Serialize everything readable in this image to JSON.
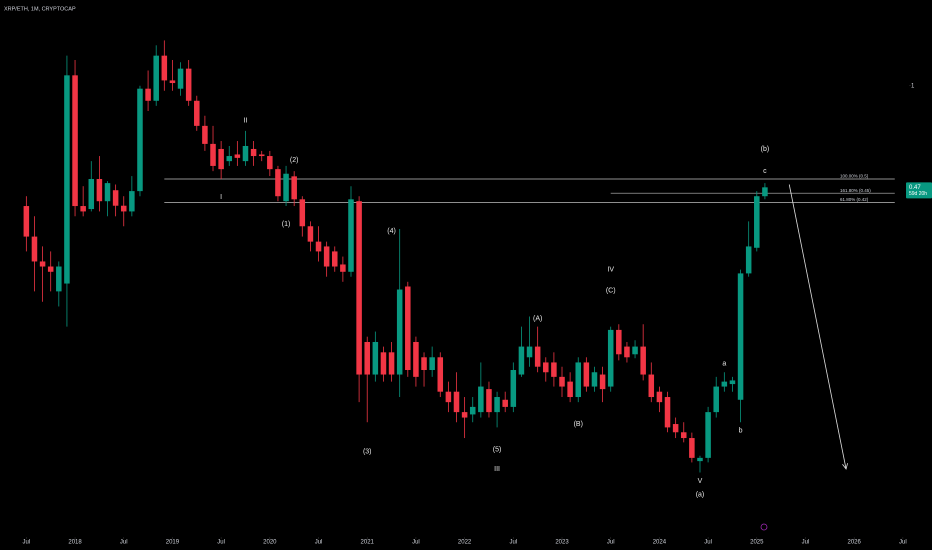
{
  "chart_data": {
    "type": "candlestick",
    "title": "XRP/ETH, 1M, CRYPTOCAP",
    "x": [
      "2017-07",
      "2017-08",
      "2017-09",
      "2017-10",
      "2017-11",
      "2017-12",
      "2018-01",
      "2018-02",
      "2018-03",
      "2018-04",
      "2018-05",
      "2018-06",
      "2018-07",
      "2018-08",
      "2018-09",
      "2018-10",
      "2018-11",
      "2018-12",
      "2019-01",
      "2019-02",
      "2019-03",
      "2019-04",
      "2019-05",
      "2019-06",
      "2019-07",
      "2019-08",
      "2019-09",
      "2019-10",
      "2019-11",
      "2019-12",
      "2020-01",
      "2020-02",
      "2020-03",
      "2020-04",
      "2020-05",
      "2020-06",
      "2020-07",
      "2020-08",
      "2020-09",
      "2020-10",
      "2020-11",
      "2020-12",
      "2021-01",
      "2021-02",
      "2021-03",
      "2021-04",
      "2021-05",
      "2021-06",
      "2021-07",
      "2021-08",
      "2021-09",
      "2021-10",
      "2021-11",
      "2021-12",
      "2022-01",
      "2022-02",
      "2022-03",
      "2022-04",
      "2022-05",
      "2022-06",
      "2022-07",
      "2022-08",
      "2022-09",
      "2022-10",
      "2022-11",
      "2022-12",
      "2023-01",
      "2023-02",
      "2023-03",
      "2023-04",
      "2023-05",
      "2023-06",
      "2023-07",
      "2023-08",
      "2023-09",
      "2023-10",
      "2023-11",
      "2023-12",
      "2024-01",
      "2024-02",
      "2024-03",
      "2024-04",
      "2024-05",
      "2024-06",
      "2024-07",
      "2024-08",
      "2024-09",
      "2024-10",
      "2024-11",
      "2024-12",
      "2025-01",
      "2025-02"
    ],
    "open": [
      0.409,
      0.326,
      0.271,
      0.261,
      0.217,
      0.23,
      1.08,
      0.409,
      0.4,
      0.5,
      0.424,
      0.46,
      0.41,
      0.393,
      0.457,
      0.978,
      0.894,
      1.25,
      1.04,
      0.978,
      1.135,
      0.894,
      0.742,
      0.649,
      0.625,
      0.571,
      0.6,
      0.571,
      0.625,
      0.6,
      0.593,
      0.538,
      0.424,
      0.51,
      0.43,
      0.352,
      0.314,
      0.303,
      0.292,
      0.265,
      0.251,
      0.424,
      0.149,
      0.117,
      0.138,
      0.138,
      0.117,
      0.225,
      0.149,
      0.133,
      0.121,
      0.133,
      0.103,
      0.103,
      0.0885,
      0.087,
      0.0885,
      0.105,
      0.0885,
      0.097,
      0.092,
      0.117,
      0.133,
      0.144,
      0.128,
      0.128,
      0.115,
      0.111,
      0.099,
      0.128,
      0.107,
      0.117,
      0.107,
      0.163,
      0.144,
      0.136,
      0.144,
      0.117,
      0.103,
      0.099,
      0.081,
      0.0762,
      0.073,
      0.0615,
      0.063,
      0.0885,
      0.107,
      0.109,
      0.097,
      0.248,
      0.3,
      0.44
    ],
    "high": [
      0.44,
      0.379,
      0.303,
      0.292,
      0.271,
      1.25,
      1.21,
      0.474,
      0.571,
      0.593,
      0.492,
      0.48,
      0.44,
      0.511,
      1.0,
      1.12,
      1.35,
      1.4,
      1.21,
      1.19,
      1.21,
      0.928,
      0.8,
      0.742,
      0.663,
      0.639,
      0.663,
      0.715,
      0.663,
      0.616,
      0.616,
      0.551,
      0.551,
      0.53,
      0.44,
      0.365,
      0.352,
      0.314,
      0.303,
      0.281,
      0.474,
      0.44,
      0.155,
      0.161,
      0.144,
      0.149,
      0.345,
      0.233,
      0.155,
      0.138,
      0.144,
      0.138,
      0.111,
      0.119,
      0.099,
      0.099,
      0.128,
      0.111,
      0.103,
      0.103,
      0.128,
      0.167,
      0.18,
      0.167,
      0.133,
      0.138,
      0.124,
      0.119,
      0.133,
      0.133,
      0.124,
      0.124,
      0.167,
      0.17,
      0.149,
      0.151,
      0.17,
      0.128,
      0.107,
      0.103,
      0.085,
      0.0821,
      0.076,
      0.064,
      0.092,
      0.115,
      0.119,
      0.115,
      0.255,
      0.365,
      0.457,
      0.485
    ],
    "low": [
      0.292,
      0.217,
      0.201,
      0.217,
      0.194,
      0.167,
      0.379,
      0.379,
      0.393,
      0.393,
      0.379,
      0.379,
      0.352,
      0.379,
      0.44,
      0.829,
      0.861,
      0.963,
      0.963,
      0.928,
      0.861,
      0.715,
      0.616,
      0.53,
      0.5,
      0.551,
      0.551,
      0.551,
      0.551,
      0.571,
      0.511,
      0.424,
      0.409,
      0.409,
      0.326,
      0.292,
      0.271,
      0.242,
      0.251,
      0.233,
      0.242,
      0.0953,
      0.0821,
      0.111,
      0.111,
      0.111,
      0.099,
      0.115,
      0.107,
      0.107,
      0.115,
      0.099,
      0.0885,
      0.0821,
      0.073,
      0.0821,
      0.085,
      0.085,
      0.079,
      0.0885,
      0.0885,
      0.115,
      0.124,
      0.119,
      0.111,
      0.107,
      0.099,
      0.0953,
      0.0953,
      0.103,
      0.103,
      0.0953,
      0.103,
      0.13,
      0.128,
      0.132,
      0.112,
      0.0953,
      0.0885,
      0.0762,
      0.073,
      0.0707,
      0.0609,
      0.0565,
      0.0609,
      0.085,
      0.103,
      0.103,
      0.0821,
      0.242,
      0.292,
      0.43
    ],
    "close": [
      0.326,
      0.271,
      0.261,
      0.251,
      0.261,
      1.08,
      0.409,
      0.393,
      0.5,
      0.424,
      0.485,
      0.41,
      0.393,
      0.457,
      0.978,
      0.894,
      1.25,
      1.04,
      1.02,
      1.135,
      0.894,
      0.742,
      0.649,
      0.551,
      0.538,
      0.593,
      0.585,
      0.639,
      0.593,
      0.593,
      0.538,
      0.44,
      0.52,
      0.43,
      0.352,
      0.314,
      0.292,
      0.261,
      0.261,
      0.251,
      0.43,
      0.117,
      0.117,
      0.149,
      0.117,
      0.117,
      0.22,
      0.121,
      0.115,
      0.121,
      0.133,
      0.103,
      0.0953,
      0.0885,
      0.085,
      0.092,
      0.107,
      0.0885,
      0.099,
      0.092,
      0.121,
      0.144,
      0.144,
      0.124,
      0.119,
      0.115,
      0.107,
      0.099,
      0.128,
      0.107,
      0.119,
      0.105,
      0.163,
      0.136,
      0.133,
      0.144,
      0.117,
      0.099,
      0.0953,
      0.079,
      0.0762,
      0.073,
      0.063,
      0.063,
      0.0885,
      0.107,
      0.111,
      0.112,
      0.248,
      0.303,
      0.44,
      0.47
    ],
    "up_color": "#089981",
    "down_color": "#f23645",
    "log_scale": true,
    "xlim": [
      "2017-04",
      "2026-08"
    ],
    "ylim": [
      0.035,
      1.89
    ],
    "yticks": [
      1
    ],
    "xticks": [
      {
        "value": "2017-07",
        "label": "Jul"
      },
      {
        "value": "2018-01",
        "label": "2018"
      },
      {
        "value": "2018-07",
        "label": "Jul"
      },
      {
        "value": "2019-01",
        "label": "2019"
      },
      {
        "value": "2019-07",
        "label": "Jul"
      },
      {
        "value": "2020-01",
        "label": "2020"
      },
      {
        "value": "2020-07",
        "label": "Jul"
      },
      {
        "value": "2021-01",
        "label": "2021"
      },
      {
        "value": "2021-07",
        "label": "Jul"
      },
      {
        "value": "2022-01",
        "label": "2022"
      },
      {
        "value": "2022-07",
        "label": "Jul"
      },
      {
        "value": "2023-01",
        "label": "2023"
      },
      {
        "value": "2023-07",
        "label": "Jul"
      },
      {
        "value": "2024-01",
        "label": "2024"
      },
      {
        "value": "2024-07",
        "label": "Jul"
      },
      {
        "value": "2025-01",
        "label": "2025"
      },
      {
        "value": "2025-07",
        "label": "Jul"
      },
      {
        "value": "2026-01",
        "label": "2026"
      },
      {
        "value": "2026-07",
        "label": "Jul"
      }
    ],
    "levels": [
      {
        "label": "100.00% (0.5)",
        "value": 0.5,
        "from": "2018-12",
        "to": "2026-06"
      },
      {
        "label": "161.80% (0.45)",
        "value": 0.45,
        "from": "2023-07",
        "to": "2026-06"
      },
      {
        "label": "61.80% (0.42)",
        "value": 0.42,
        "from": "2018-12",
        "to": "2026-06"
      }
    ],
    "annotations": [
      {
        "text": "I",
        "x": "2019-07",
        "y": 0.437
      },
      {
        "text": "II",
        "x": "2019-10",
        "y": 0.77
      },
      {
        "text": "(2)",
        "x": "2020-04",
        "y": 0.575
      },
      {
        "text": "(1)",
        "x": "2020-03",
        "y": 0.357
      },
      {
        "text": "(3)",
        "x": "2021-01",
        "y": 0.066
      },
      {
        "text": "(4)",
        "x": "2021-04",
        "y": 0.339
      },
      {
        "text": "(5)",
        "x": "2022-05",
        "y": 0.067
      },
      {
        "text": "III",
        "x": "2022-05",
        "y": 0.058
      },
      {
        "text": "(A)",
        "x": "2022-10",
        "y": 0.177
      },
      {
        "text": "(B)",
        "x": "2023-03",
        "y": 0.081
      },
      {
        "text": "IV",
        "x": "2023-07",
        "y": 0.255
      },
      {
        "text": "(C)",
        "x": "2023-07",
        "y": 0.218
      },
      {
        "text": "V",
        "x": "2024-06",
        "y": 0.053
      },
      {
        "text": "(a)",
        "x": "2024-06",
        "y": 0.048
      },
      {
        "text": "a",
        "x": "2024-09",
        "y": 0.127
      },
      {
        "text": "b",
        "x": "2024-11",
        "y": 0.077
      },
      {
        "text": "(b)",
        "x": "2025-02",
        "y": 0.625
      },
      {
        "text": "c",
        "x": "2025-02",
        "y": 0.53
      }
    ],
    "arrow": {
      "from": {
        "x": "2025-05",
        "y": 0.48
      },
      "to": {
        "x": "2025-12",
        "y": 0.058
      }
    },
    "last_price_label": "0.47",
    "countdown": "59d 20h"
  }
}
